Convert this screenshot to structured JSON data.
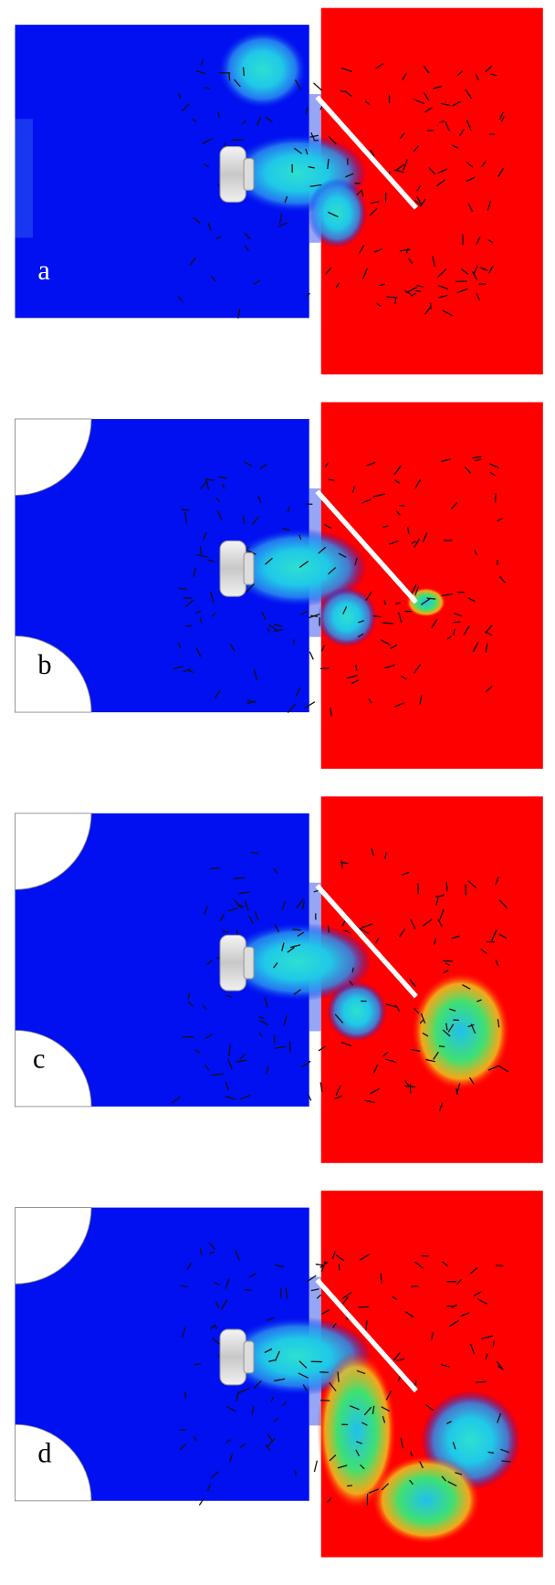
{
  "panels": [
    {
      "label": "a"
    },
    {
      "label": "b"
    },
    {
      "label": "c"
    },
    {
      "label": "d"
    }
  ]
}
